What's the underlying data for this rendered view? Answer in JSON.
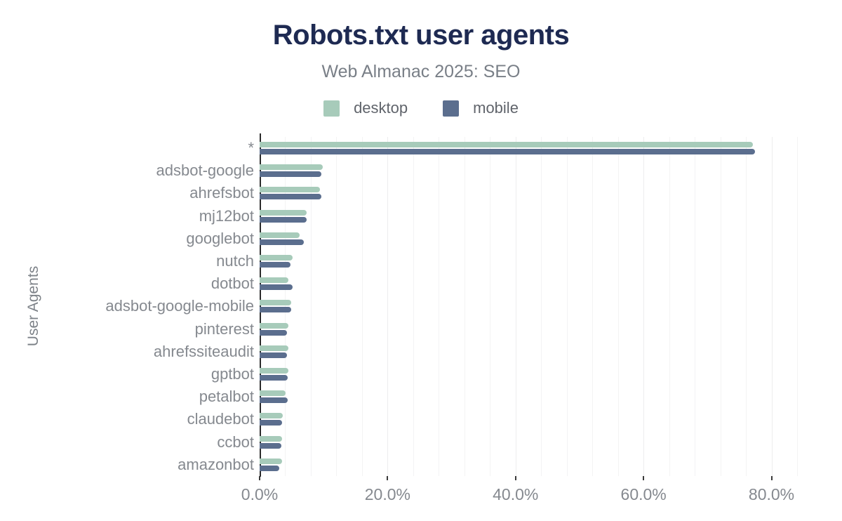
{
  "header": {
    "title": "Robots.txt user agents",
    "subtitle": "Web Almanac 2025: SEO"
  },
  "colors": {
    "title": "#1e2a52",
    "subtitle_text": "#797f87",
    "axis_text": "#85898f",
    "desktop": "#a7cbba",
    "mobile": "#5b6e8e"
  },
  "chart_data": {
    "type": "bar",
    "orientation": "horizontal",
    "title": "Robots.txt user agents",
    "subtitle": "Web Almanac 2025: SEO",
    "ylabel": "User Agents",
    "xlabel": "",
    "categories": [
      "*",
      "adsbot-google",
      "ahrefsbot",
      "mj12bot",
      "googlebot",
      "nutch",
      "dotbot",
      "adsbot-google-mobile",
      "pinterest",
      "ahrefssiteaudit",
      "gptbot",
      "petalbot",
      "claudebot",
      "ccbot",
      "amazonbot"
    ],
    "series": [
      {
        "name": "desktop",
        "color": "#a7cbba",
        "values": [
          77.1,
          9.9,
          9.4,
          7.4,
          6.3,
          5.1,
          4.5,
          4.9,
          4.5,
          4.5,
          4.5,
          4.1,
          3.6,
          3.5,
          3.5
        ]
      },
      {
        "name": "mobile",
        "color": "#5b6e8e",
        "values": [
          77.4,
          9.7,
          9.6,
          7.3,
          6.9,
          4.8,
          5.1,
          4.9,
          4.3,
          4.3,
          4.4,
          4.4,
          3.5,
          3.4,
          3.1
        ]
      }
    ],
    "x_axis": {
      "unit": "%",
      "tick_labels": [
        "0.0%",
        "20.0%",
        "40.0%",
        "60.0%",
        "80.0%"
      ],
      "tick_values": [
        0,
        20,
        40,
        60,
        80
      ],
      "max": 84,
      "minor_gridline_step": 4
    },
    "grid": "vertical minor gridlines on",
    "legend_position": "top"
  }
}
